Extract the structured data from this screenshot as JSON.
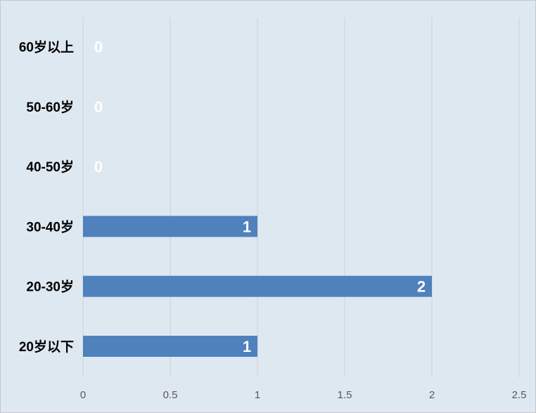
{
  "chart_data": {
    "type": "bar",
    "orientation": "horizontal",
    "categories": [
      "20岁以下",
      "20-30岁",
      "30-40岁",
      "40-50岁",
      "50-60岁",
      "60岁以上"
    ],
    "values": [
      1,
      2,
      1,
      0,
      0,
      0
    ],
    "data_labels": [
      "1",
      "2",
      "1",
      "0",
      "0",
      "0"
    ],
    "xlim": [
      0,
      2.5
    ],
    "x_ticks": [
      0,
      0.5,
      1,
      1.5,
      2,
      2.5
    ],
    "x_tick_labels": [
      "0",
      "0.5",
      "1",
      "1.5",
      "2",
      "2.5"
    ],
    "grid": "vertical",
    "legend": "none",
    "colors": {
      "bar": "#4f81bd",
      "background": "#dee8f1",
      "grid": "#d4d4d4",
      "data_label": "#ffffff"
    }
  }
}
